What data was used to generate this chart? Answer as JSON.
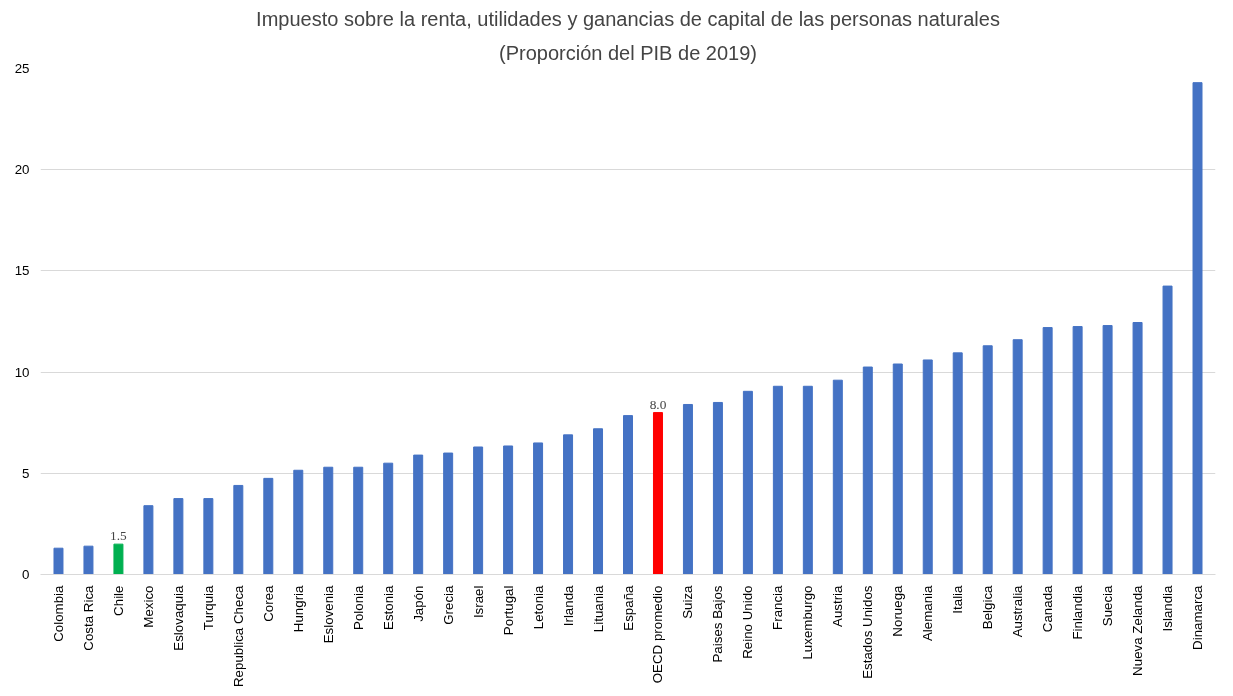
{
  "chart_data": {
    "type": "bar",
    "title": "Impuesto sobre la renta, utilidades y ganancias de capital de las personas naturales",
    "subtitle": "(Proporción del PIB de 2019)",
    "categories": [
      "Colombia",
      "Costa Rica",
      "Chile",
      "Mexico",
      "Eslovaquia",
      "Turquia",
      "Republica Checa",
      "Corea",
      "Hungria",
      "Eslovenia",
      "Polonia",
      "Estonia",
      "Japón",
      "Grecia",
      "Israel",
      "Portugal",
      "Letonia",
      "Irlanda",
      "Lituania",
      "España",
      "OECD promedio",
      "Suiza",
      "Paises Bajos",
      "Reino Unido",
      "Francia",
      "Luxemburgo",
      "Austria",
      "Estados Unidos",
      "Noruega",
      "Alemania",
      "Italia",
      "Belgica",
      "Australia",
      "Canada",
      "Finlandia",
      "Suecia",
      "Nueva Zelanda",
      "Islandia",
      "Dinamarca"
    ],
    "values": [
      1.3,
      1.4,
      1.5,
      3.4,
      3.75,
      3.75,
      4.4,
      4.75,
      5.15,
      5.3,
      5.3,
      5.5,
      5.9,
      6.0,
      6.3,
      6.35,
      6.5,
      6.9,
      7.2,
      7.85,
      8.0,
      8.4,
      8.5,
      9.05,
      9.3,
      9.3,
      9.6,
      10.25,
      10.4,
      10.6,
      10.95,
      11.3,
      11.6,
      12.2,
      12.25,
      12.3,
      12.45,
      14.25,
      24.3
    ],
    "colors": [
      "#4472c4",
      "#4472c4",
      "#00b050",
      "#4472c4",
      "#4472c4",
      "#4472c4",
      "#4472c4",
      "#4472c4",
      "#4472c4",
      "#4472c4",
      "#4472c4",
      "#4472c4",
      "#4472c4",
      "#4472c4",
      "#4472c4",
      "#4472c4",
      "#4472c4",
      "#4472c4",
      "#4472c4",
      "#4472c4",
      "#ff0000",
      "#4472c4",
      "#4472c4",
      "#4472c4",
      "#4472c4",
      "#4472c4",
      "#4472c4",
      "#4472c4",
      "#4472c4",
      "#4472c4",
      "#4472c4",
      "#4472c4",
      "#4472c4",
      "#4472c4",
      "#4472c4",
      "#4472c4",
      "#4472c4",
      "#4472c4",
      "#4472c4"
    ],
    "value_labels": [
      null,
      null,
      "1.5",
      null,
      null,
      null,
      null,
      null,
      null,
      null,
      null,
      null,
      null,
      null,
      null,
      null,
      null,
      null,
      null,
      null,
      "8.0",
      null,
      null,
      null,
      null,
      null,
      null,
      null,
      null,
      null,
      null,
      null,
      null,
      null,
      null,
      null,
      null,
      null,
      null
    ],
    "ylim": [
      0,
      25
    ],
    "yticks": [
      0,
      5,
      10,
      15,
      20,
      25
    ],
    "grid": "y"
  }
}
